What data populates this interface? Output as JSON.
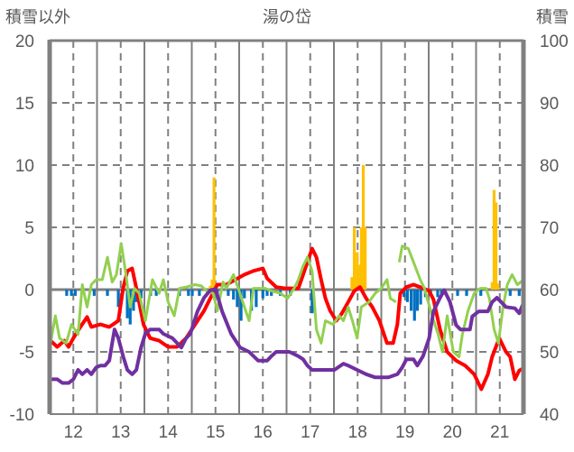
{
  "chart_data": {
    "type": "line",
    "title": "湯の岱",
    "ylabel_left": "積雪以外",
    "ylabel_right": "積雪",
    "xlim": [
      11.5,
      21.5
    ],
    "ylim_left": [
      -10,
      20
    ],
    "ylim_right": [
      40,
      100
    ],
    "x_ticks": [
      12,
      13,
      14,
      15,
      16,
      17,
      18,
      19,
      20,
      21
    ],
    "y_ticks_left": [
      20,
      15,
      10,
      5,
      0,
      -5,
      -10
    ],
    "y_ticks_right": [
      100,
      90,
      80,
      70,
      60,
      50,
      40
    ],
    "grid": true,
    "colors": {
      "red": "#FF0000",
      "green": "#92D050",
      "purple": "#7030A0",
      "blue_bars": "#0070C0",
      "orange_bars": "#FFC000",
      "grid": "#808080"
    },
    "series": [
      {
        "name": "red",
        "axis": "left",
        "color": "#FF0000",
        "points": [
          [
            11.52,
            -4.1
          ],
          [
            11.66,
            -4.6
          ],
          [
            11.81,
            -4.1
          ],
          [
            11.9,
            -4.6
          ],
          [
            12,
            -3.9
          ],
          [
            12.15,
            -3.0
          ],
          [
            12.29,
            -2.2
          ],
          [
            12.38,
            -3.0
          ],
          [
            12.57,
            -2.8
          ],
          [
            12.76,
            -3.0
          ],
          [
            12.95,
            -2.5
          ],
          [
            13.05,
            0.1
          ],
          [
            13.14,
            1.5
          ],
          [
            13.24,
            1.7
          ],
          [
            13.33,
            0.1
          ],
          [
            13.48,
            -2.8
          ],
          [
            13.62,
            -3.9
          ],
          [
            13.81,
            -4.1
          ],
          [
            14,
            -4.6
          ],
          [
            14.19,
            -4.6
          ],
          [
            14.38,
            -3.9
          ],
          [
            14.57,
            -2.8
          ],
          [
            14.76,
            -1.7
          ],
          [
            14.89,
            -0.7
          ],
          [
            15.04,
            0.4
          ],
          [
            15.23,
            0.4
          ],
          [
            15.42,
            0.8
          ],
          [
            15.61,
            1.2
          ],
          [
            15.8,
            1.5
          ],
          [
            16,
            1.7
          ],
          [
            16.09,
            0.9
          ],
          [
            16.28,
            0.2
          ],
          [
            16.47,
            0.1
          ],
          [
            16.6,
            0.1
          ],
          [
            16.75,
            0.1
          ],
          [
            16.85,
            1.2
          ],
          [
            16.94,
            2.2
          ],
          [
            17.04,
            3.3
          ],
          [
            17.13,
            2.6
          ],
          [
            17.23,
            0.8
          ],
          [
            17.32,
            -0.7
          ],
          [
            17.42,
            -1.7
          ],
          [
            17.55,
            -2.5
          ],
          [
            17.67,
            -1.9
          ],
          [
            17.8,
            -1.0
          ],
          [
            17.93,
            -0.1
          ],
          [
            18.05,
            0.2
          ],
          [
            18.18,
            -0.7
          ],
          [
            18.31,
            -1.4
          ],
          [
            18.46,
            -2.5
          ],
          [
            18.62,
            -4.3
          ],
          [
            18.75,
            -4.3
          ],
          [
            18.84,
            -2.8
          ],
          [
            18.9,
            -0.3
          ],
          [
            19.03,
            0.2
          ],
          [
            19.18,
            0.4
          ],
          [
            19.32,
            0.2
          ],
          [
            19.51,
            -0.1
          ],
          [
            19.6,
            -0.8
          ],
          [
            19.74,
            -3.2
          ],
          [
            19.89,
            -5
          ],
          [
            20.08,
            -5.7
          ],
          [
            20.27,
            -6.1
          ],
          [
            20.46,
            -6.8
          ],
          [
            20.61,
            -8
          ],
          [
            20.75,
            -6.8
          ],
          [
            20.84,
            -5.4
          ],
          [
            20.99,
            -3.9
          ],
          [
            21.13,
            -5
          ],
          [
            21.22,
            -5.4
          ],
          [
            21.32,
            -7.2
          ],
          [
            21.41,
            -6.5
          ],
          [
            21.51,
            -6.3
          ]
        ]
      },
      {
        "name": "green",
        "axis": "left",
        "color": "#92D050",
        "points": [
          [
            11.52,
            -4.3
          ],
          [
            11.62,
            -2.1
          ],
          [
            11.71,
            -3.9
          ],
          [
            11.85,
            -4.3
          ],
          [
            11.96,
            -2.8
          ],
          [
            12.1,
            -3.6
          ],
          [
            12.19,
            0.4
          ],
          [
            12.29,
            -1.4
          ],
          [
            12.38,
            0.4
          ],
          [
            12.48,
            0.8
          ],
          [
            12.61,
            0.8
          ],
          [
            12.72,
            2.6
          ],
          [
            12.82,
            0.6
          ],
          [
            12.91,
            1.2
          ],
          [
            13.01,
            3.7
          ],
          [
            13.1,
            1.5
          ],
          [
            13.2,
            -1.4
          ],
          [
            13.29,
            0.1
          ],
          [
            13.39,
            -0.3
          ],
          [
            13.52,
            -2.5
          ],
          [
            13.67,
            0.8
          ],
          [
            13.81,
            -0.3
          ],
          [
            13.9,
            0.8
          ],
          [
            14,
            -1.0
          ],
          [
            14.13,
            -2.1
          ],
          [
            14.24,
            0.1
          ],
          [
            14.38,
            0.2
          ],
          [
            14.57,
            0.4
          ],
          [
            14.7,
            0.3
          ],
          [
            14.81,
            -0.1
          ],
          [
            14.95,
            -0.3
          ],
          [
            15.04,
            -1.7
          ],
          [
            15.16,
            0.6
          ],
          [
            15.23,
            0.1
          ],
          [
            15.38,
            1.2
          ],
          [
            15.48,
            0.1
          ],
          [
            15.61,
            -1.4
          ],
          [
            15.71,
            -2.5
          ],
          [
            15.8,
            0.1
          ],
          [
            15.94,
            0.1
          ],
          [
            16.05,
            0.1
          ],
          [
            16.18,
            -0.1
          ],
          [
            16.37,
            -0.3
          ],
          [
            16.52,
            -0.7
          ],
          [
            16.66,
            0.1
          ],
          [
            16.75,
            0.8
          ],
          [
            16.85,
            1.9
          ],
          [
            16.94,
            2.6
          ],
          [
            17.04,
            1.5
          ],
          [
            17.13,
            -3.2
          ],
          [
            17.23,
            -4.3
          ],
          [
            17.32,
            -2.5
          ],
          [
            17.48,
            -2.8
          ],
          [
            17.61,
            -2.1
          ],
          [
            17.7,
            -2.5
          ],
          [
            17.8,
            -1.4
          ],
          [
            17.89,
            -2.5
          ],
          [
            17.99,
            -3.9
          ],
          [
            18.08,
            -1.4
          ],
          [
            18.24,
            -1.0
          ],
          [
            18.37,
            -0.3
          ],
          [
            18.5,
            0.1
          ],
          [
            18.62,
            0.8
          ],
          [
            18.69,
            -0.7
          ],
          [
            18.81,
            -1.0
          ],
          null,
          [
            18.88,
            2.2
          ],
          [
            18.94,
            3.5
          ],
          [
            19.07,
            3.3
          ],
          [
            19.18,
            2.2
          ],
          [
            19.32,
            0.8
          ],
          [
            19.41,
            0.1
          ],
          [
            19.57,
            -2.1
          ],
          [
            19.7,
            -3.6
          ],
          [
            19.79,
            -5
          ],
          [
            19.89,
            -2.1
          ],
          [
            20.02,
            -5
          ],
          [
            20.14,
            -5.4
          ],
          [
            20.21,
            -3.6
          ],
          [
            20.33,
            -1.7
          ],
          [
            20.46,
            -0.3
          ],
          [
            20.59,
            0.1
          ],
          [
            20.71,
            0.1
          ],
          [
            20.78,
            -0.7
          ],
          [
            20.88,
            -3.2
          ],
          [
            20.97,
            -4.3
          ],
          [
            21.07,
            -1.4
          ],
          [
            21.16,
            0.4
          ],
          [
            21.26,
            1.2
          ],
          [
            21.37,
            0.4
          ],
          [
            21.51,
            0.8
          ]
        ]
      },
      {
        "name": "purple",
        "axis": "right",
        "color": "#7030A0",
        "points": [
          [
            11.52,
            45.6
          ],
          [
            11.66,
            45.6
          ],
          [
            11.77,
            45
          ],
          [
            11.9,
            45
          ],
          [
            12,
            45.6
          ],
          [
            12.1,
            47.1
          ],
          [
            12.19,
            46.4
          ],
          [
            12.29,
            47.1
          ],
          [
            12.38,
            46.4
          ],
          [
            12.48,
            47.5
          ],
          [
            12.57,
            47.8
          ],
          [
            12.67,
            47.8
          ],
          [
            12.76,
            48.6
          ],
          [
            12.82,
            51.4
          ],
          [
            12.87,
            53.6
          ],
          [
            12.95,
            52.2
          ],
          [
            13.05,
            49.3
          ],
          [
            13.14,
            47.1
          ],
          [
            13.24,
            46.4
          ],
          [
            13.33,
            47.1
          ],
          [
            13.43,
            50.7
          ],
          [
            13.52,
            52.9
          ],
          [
            13.62,
            53.6
          ],
          [
            13.81,
            53.6
          ],
          [
            13.9,
            52.9
          ],
          [
            14.09,
            52.2
          ],
          [
            14.28,
            50.7
          ],
          [
            14.38,
            52.2
          ],
          [
            14.47,
            52.9
          ],
          [
            14.62,
            56.5
          ],
          [
            14.76,
            58.7
          ],
          [
            14.89,
            59.9
          ],
          [
            15,
            60.1
          ],
          [
            15.14,
            56.5
          ],
          [
            15.33,
            52.9
          ],
          [
            15.52,
            50.7
          ],
          [
            15.71,
            50
          ],
          [
            15.9,
            48.6
          ],
          [
            16.09,
            48.6
          ],
          [
            16.18,
            49.3
          ],
          [
            16.28,
            50
          ],
          [
            16.56,
            50
          ],
          [
            16.75,
            49.3
          ],
          [
            16.85,
            48.8
          ],
          [
            16.94,
            47.8
          ],
          [
            17.04,
            47.1
          ],
          [
            17.51,
            47.1
          ],
          [
            17.7,
            48.1
          ],
          [
            17.8,
            47.8
          ],
          [
            17.99,
            47.1
          ],
          [
            18.18,
            46.4
          ],
          [
            18.37,
            45.9
          ],
          [
            18.65,
            45.9
          ],
          [
            18.84,
            46.4
          ],
          [
            18.94,
            47.5
          ],
          [
            19.03,
            48.8
          ],
          [
            19.18,
            48.8
          ],
          [
            19.26,
            47.8
          ],
          [
            19.38,
            49.3
          ],
          [
            19.51,
            52.2
          ],
          [
            19.6,
            56.5
          ],
          [
            19.74,
            58.7
          ],
          [
            19.83,
            59.9
          ],
          [
            19.95,
            58
          ],
          [
            20.08,
            54.3
          ],
          [
            20.17,
            53.6
          ],
          [
            20.37,
            53.6
          ],
          [
            20.42,
            55.7
          ],
          [
            20.56,
            56.5
          ],
          [
            20.75,
            56.5
          ],
          [
            20.84,
            58
          ],
          [
            20.94,
            58.7
          ],
          [
            21.03,
            58
          ],
          [
            21.13,
            57.2
          ],
          [
            21.32,
            57
          ],
          [
            21.41,
            56.2
          ],
          [
            21.51,
            58
          ]
        ]
      }
    ],
    "bars": [
      {
        "name": "blue",
        "axis": "left",
        "color": "#0070C0",
        "points": [
          [
            11.86,
            -0.5
          ],
          [
            11.96,
            -0.5
          ],
          [
            12.04,
            -0.5
          ],
          [
            12.44,
            -0.5
          ],
          [
            12.72,
            -0.5
          ],
          [
            12.95,
            -1.4
          ],
          [
            13.14,
            -2.3
          ],
          [
            13.2,
            -2.8
          ],
          [
            13.27,
            -1.7
          ],
          [
            13.33,
            -1.0
          ],
          [
            13.43,
            -0.7
          ],
          [
            13.63,
            -0.5
          ],
          [
            13.75,
            -0.5
          ],
          [
            14.24,
            -0.5
          ],
          [
            14.43,
            -0.5
          ],
          [
            14.51,
            -0.5
          ],
          [
            14.66,
            -0.5
          ],
          [
            15.04,
            -0.5
          ],
          [
            15.27,
            -0.5
          ],
          [
            15.38,
            -0.8
          ],
          [
            15.46,
            -1.4
          ],
          [
            15.54,
            -2.5
          ],
          [
            15.61,
            -0.7
          ],
          [
            15.76,
            -1.7
          ],
          [
            15.86,
            -1.4
          ],
          [
            16,
            -0.7
          ],
          [
            16.09,
            -0.5
          ],
          [
            16.18,
            -0.5
          ],
          [
            16.37,
            -0.5
          ],
          [
            16.58,
            -0.5
          ],
          [
            17.04,
            -1.9
          ],
          [
            18.98,
            -0.6
          ],
          [
            19.05,
            -1.0
          ],
          [
            19.13,
            -1.7
          ],
          [
            19.2,
            -2.5
          ],
          [
            19.26,
            -1.7
          ],
          [
            19.33,
            -1.2
          ],
          [
            19.43,
            -0.6
          ],
          [
            19.54,
            -0.5
          ],
          [
            19.69,
            -0.6
          ],
          [
            19.77,
            -0.5
          ],
          [
            20.11,
            -0.5
          ],
          [
            20.3,
            -0.5
          ],
          [
            20.6,
            -0.5
          ],
          [
            21.22,
            -0.5
          ],
          [
            21.41,
            -0.5
          ]
        ]
      },
      {
        "name": "orange",
        "axis": "left",
        "color": "#FFC000",
        "points": [
          [
            14.89,
            0.3
          ],
          [
            14.93,
            0.8
          ],
          [
            14.97,
            9
          ],
          [
            17.88,
            1
          ],
          [
            17.93,
            5
          ],
          [
            17.99,
            3
          ],
          [
            18.05,
            2
          ],
          [
            18.08,
            5
          ],
          [
            18.12,
            10
          ],
          [
            18.16,
            5
          ],
          [
            20.84,
            0.6
          ],
          [
            20.88,
            8
          ],
          [
            20.92,
            7
          ],
          [
            20.96,
            0.5
          ]
        ]
      }
    ]
  }
}
